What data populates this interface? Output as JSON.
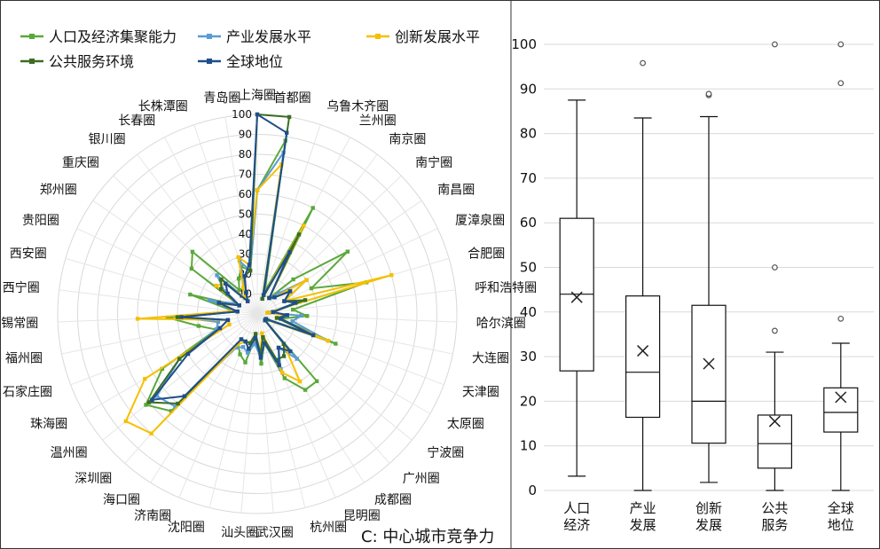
{
  "caption": "C: 中心城市竞争力",
  "chart_data": [
    {
      "type": "radar",
      "legend_placement": "top",
      "legend": [
        {
          "name": "人口及经济集聚能力",
          "color": "#5aa83a"
        },
        {
          "name": "产业发展水平",
          "color": "#5b9bd5"
        },
        {
          "name": "创新发展水平",
          "color": "#f5c000"
        },
        {
          "name": "公共服务环境",
          "color": "#3b6e23"
        },
        {
          "name": "全球地位",
          "color": "#1f4e8c"
        }
      ],
      "radial_ticks": [
        10,
        20,
        30,
        40,
        50,
        60,
        70,
        80,
        90,
        100
      ],
      "rmax": 100,
      "categories": [
        "上海圈",
        "首都圈",
        "乌鲁木齐圈",
        "兰州圈",
        "南京圈",
        "南宁圈",
        "南昌圈",
        "厦漳泉圈",
        "合肥圈",
        "呼和浩特圈",
        "哈尔滨圈",
        "大连圈",
        "天津圈",
        "太原圈",
        "宁波圈",
        "广州圈",
        "成都圈",
        "昆明圈",
        "杭州圈",
        "武汉圈",
        "汕头圈",
        "沈阳圈",
        "济南圈",
        "海口圈",
        "深圳圈",
        "温州圈",
        "珠海圈",
        "石家庄圈",
        "福州圈",
        "苏锡常圈",
        "西宁圈",
        "西安圈",
        "贵阳圈",
        "郑州圈",
        "重庆圈",
        "银川圈",
        "长春圈",
        "长株潭圈",
        "青岛圈"
      ],
      "series": [
        {
          "color": "#5aa83a",
          "values": [
            62,
            88,
            12,
            60,
            10,
            25,
            55,
            30,
            57,
            18,
            25,
            12,
            42,
            6,
            5,
            45,
            45,
            35,
            15,
            25,
            12,
            25,
            22,
            18,
            65,
            72,
            55,
            22,
            30,
            45,
            12,
            35,
            10,
            40,
            45,
            15,
            20,
            25,
            22
          ]
        },
        {
          "color": "#5b9bd5",
          "values": [
            62,
            82,
            10,
            35,
            10,
            15,
            30,
            15,
            22,
            6,
            22,
            18,
            38,
            5,
            5,
            30,
            20,
            30,
            15,
            22,
            15,
            20,
            18,
            20,
            62,
            65,
            45,
            22,
            20,
            40,
            10,
            25,
            12,
            20,
            28,
            10,
            12,
            28,
            22
          ]
        },
        {
          "color": "#f5c000",
          "values": [
            62,
            76,
            10,
            50,
            10,
            12,
            30,
            15,
            70,
            5,
            15,
            10,
            38,
            5,
            5,
            20,
            40,
            32,
            10,
            20,
            12,
            15,
            15,
            18,
            80,
            85,
            65,
            15,
            15,
            60,
            12,
            18,
            10,
            25,
            22,
            10,
            15,
            30,
            25
          ]
        },
        {
          "color": "#3b6e23",
          "values": [
            100,
            100,
            8,
            45,
            10,
            12,
            20,
            15,
            25,
            8,
            15,
            10,
            30,
            5,
            5,
            20,
            25,
            25,
            12,
            20,
            10,
            15,
            15,
            15,
            60,
            70,
            45,
            20,
            15,
            40,
            10,
            20,
            10,
            22,
            25,
            8,
            12,
            20,
            22
          ]
        },
        {
          "color": "#1f4e8c",
          "values": [
            100,
            92,
            10,
            35,
            10,
            12,
            20,
            15,
            20,
            8,
            15,
            12,
            30,
            5,
            5,
            25,
            20,
            28,
            15,
            22,
            12,
            18,
            15,
            15,
            55,
            68,
            40,
            20,
            15,
            38,
            10,
            20,
            10,
            18,
            22,
            8,
            12,
            20,
            25
          ]
        }
      ]
    },
    {
      "type": "box",
      "ylim": [
        0,
        100
      ],
      "yticks": [
        0,
        10,
        20,
        30,
        40,
        50,
        60,
        70,
        80,
        90,
        100
      ],
      "grid": true,
      "categories": [
        "人口\n经济",
        "产业\n发展",
        "创新\n发展",
        "公共\n服务",
        "全球\n地位"
      ],
      "boxes": [
        {
          "min": 3.2,
          "q1": 26.8,
          "median": 44,
          "q3": 61,
          "max": 87.5,
          "mean": 43.3,
          "outliers": []
        },
        {
          "min": 0,
          "q1": 16.4,
          "median": 26.5,
          "q3": 43.6,
          "max": 83.5,
          "mean": 31.3,
          "outliers": [
            95.8
          ]
        },
        {
          "min": 1.8,
          "q1": 10.6,
          "median": 20,
          "q3": 41.5,
          "max": 83.8,
          "mean": 28.4,
          "outliers": [
            88.6,
            88.9
          ]
        },
        {
          "min": 0,
          "q1": 5,
          "median": 10.5,
          "q3": 16.9,
          "max": 31,
          "mean": 15.5,
          "outliers": [
            35.8,
            50,
            100
          ]
        },
        {
          "min": 0,
          "q1": 13.1,
          "median": 17.5,
          "q3": 23,
          "max": 33,
          "mean": 20.9,
          "outliers": [
            38.5,
            91.3,
            100
          ]
        }
      ]
    }
  ]
}
